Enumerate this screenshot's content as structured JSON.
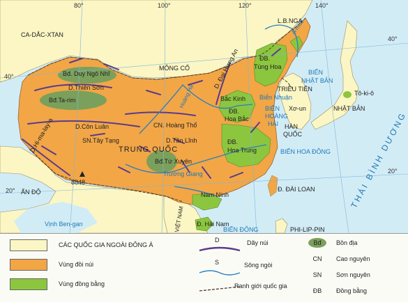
{
  "colors": {
    "sea": "#d2ecf6",
    "neighbor_land": "#fbf6c4",
    "mountains": "#f2a646",
    "plains": "#8cc63f",
    "basin": "#7ba05b",
    "ridge": "#5b3a8c",
    "river": "#2a7fc1",
    "grid": "#7fb7d8"
  },
  "coordinates": {
    "lon_80": "80°",
    "lon_100": "100°",
    "lon_120": "120°",
    "lon_140": "140°",
    "lat_40_left": "40°",
    "lat_20_left": "20°",
    "lat_40_right": "40°",
    "lat_20_right": "20°"
  },
  "countries": {
    "kazakhstan": "CA-DẮC-XTAN",
    "russia": "L.B.NGA",
    "mongolia": "MÔNG CỔ",
    "china": "TRUNG QUỐC",
    "north_korea": "TRIỀU TIÊN",
    "south_korea_1": "HÀN",
    "south_korea_2": "QUỐC",
    "japan": "NHẬT BẢN",
    "india": "ẤN ĐỘ",
    "vietnam": "VIỆT NAM",
    "philippines": "PHI-LIP-PIN"
  },
  "places": {
    "dzungaria": "Bđ. Duy Ngô Nhĩ",
    "tian_shan": "D.Thiên Sơn",
    "tarim": "Bđ.Ta-rim",
    "kunlun": "D.Côn Luân",
    "tibet": "SN.Tây Tạng",
    "himalaya": "D.Hi-ma-lay-a",
    "everest": "8848",
    "loess": "CN. Hoàng Thổ",
    "qinling": "D.Tần Lĩnh",
    "sichuan": "Bđ.Tứ Xuyên",
    "khingan": "D. Đại Hưng An",
    "northeast_1": "ĐB.",
    "northeast_2": "Tùng Hoa",
    "north_china_1": "ĐB.",
    "north_china_2": "Hoa Bắc",
    "central_china_1": "ĐB.",
    "central_china_2": "Hoa Trung",
    "beijing": "Bắc Kinh",
    "bohai": "Biển Nhuận",
    "seoul": "Xơ-un",
    "tokyo": "Tô-ki-ô",
    "south_china": "Nam Ninh",
    "hainan": "Đ. Hải Nam",
    "taiwan": "Đ. ĐÀI LOAN",
    "huang_he": "Hoàng Hà",
    "yangtze": "Trường Giang",
    "amur": "A-mua"
  },
  "seas": {
    "japan_sea_1": "BIỂN",
    "japan_sea_2": "NHẬT BẢN",
    "yellow_sea_1": "BIỂN",
    "yellow_sea_2": "HOÀNG",
    "yellow_sea_3": "HẢI",
    "east_china_sea": "BIỂN HOA ĐÔNG",
    "bay_of_bengal": "Vịnh Ben-gan",
    "bien_dong": "BIỂN ĐÔNG",
    "pacific": "THÁI BÌNH DƯƠNG"
  },
  "legend": {
    "non_east_asia": "CÁC QUỐC GIA NGOÀI ĐÔNG Á",
    "mountains": "Vùng đồi núi",
    "plains": "Vùng đồng bằng",
    "ridge_symbol": "D",
    "ridge": "Dãy núi",
    "river_symbol": "S",
    "river": "Sông ngòi",
    "border": "Ranh giới quốc gia",
    "basin_abbr": "Bđ",
    "basin": "Bồn địa",
    "plateau_abbr": "CN",
    "plateau": "Cao nguyên",
    "highland_abbr": "SN",
    "highland": "Sơn nguyên",
    "plain_abbr": "ĐB",
    "plain": "Đồng bằng"
  }
}
